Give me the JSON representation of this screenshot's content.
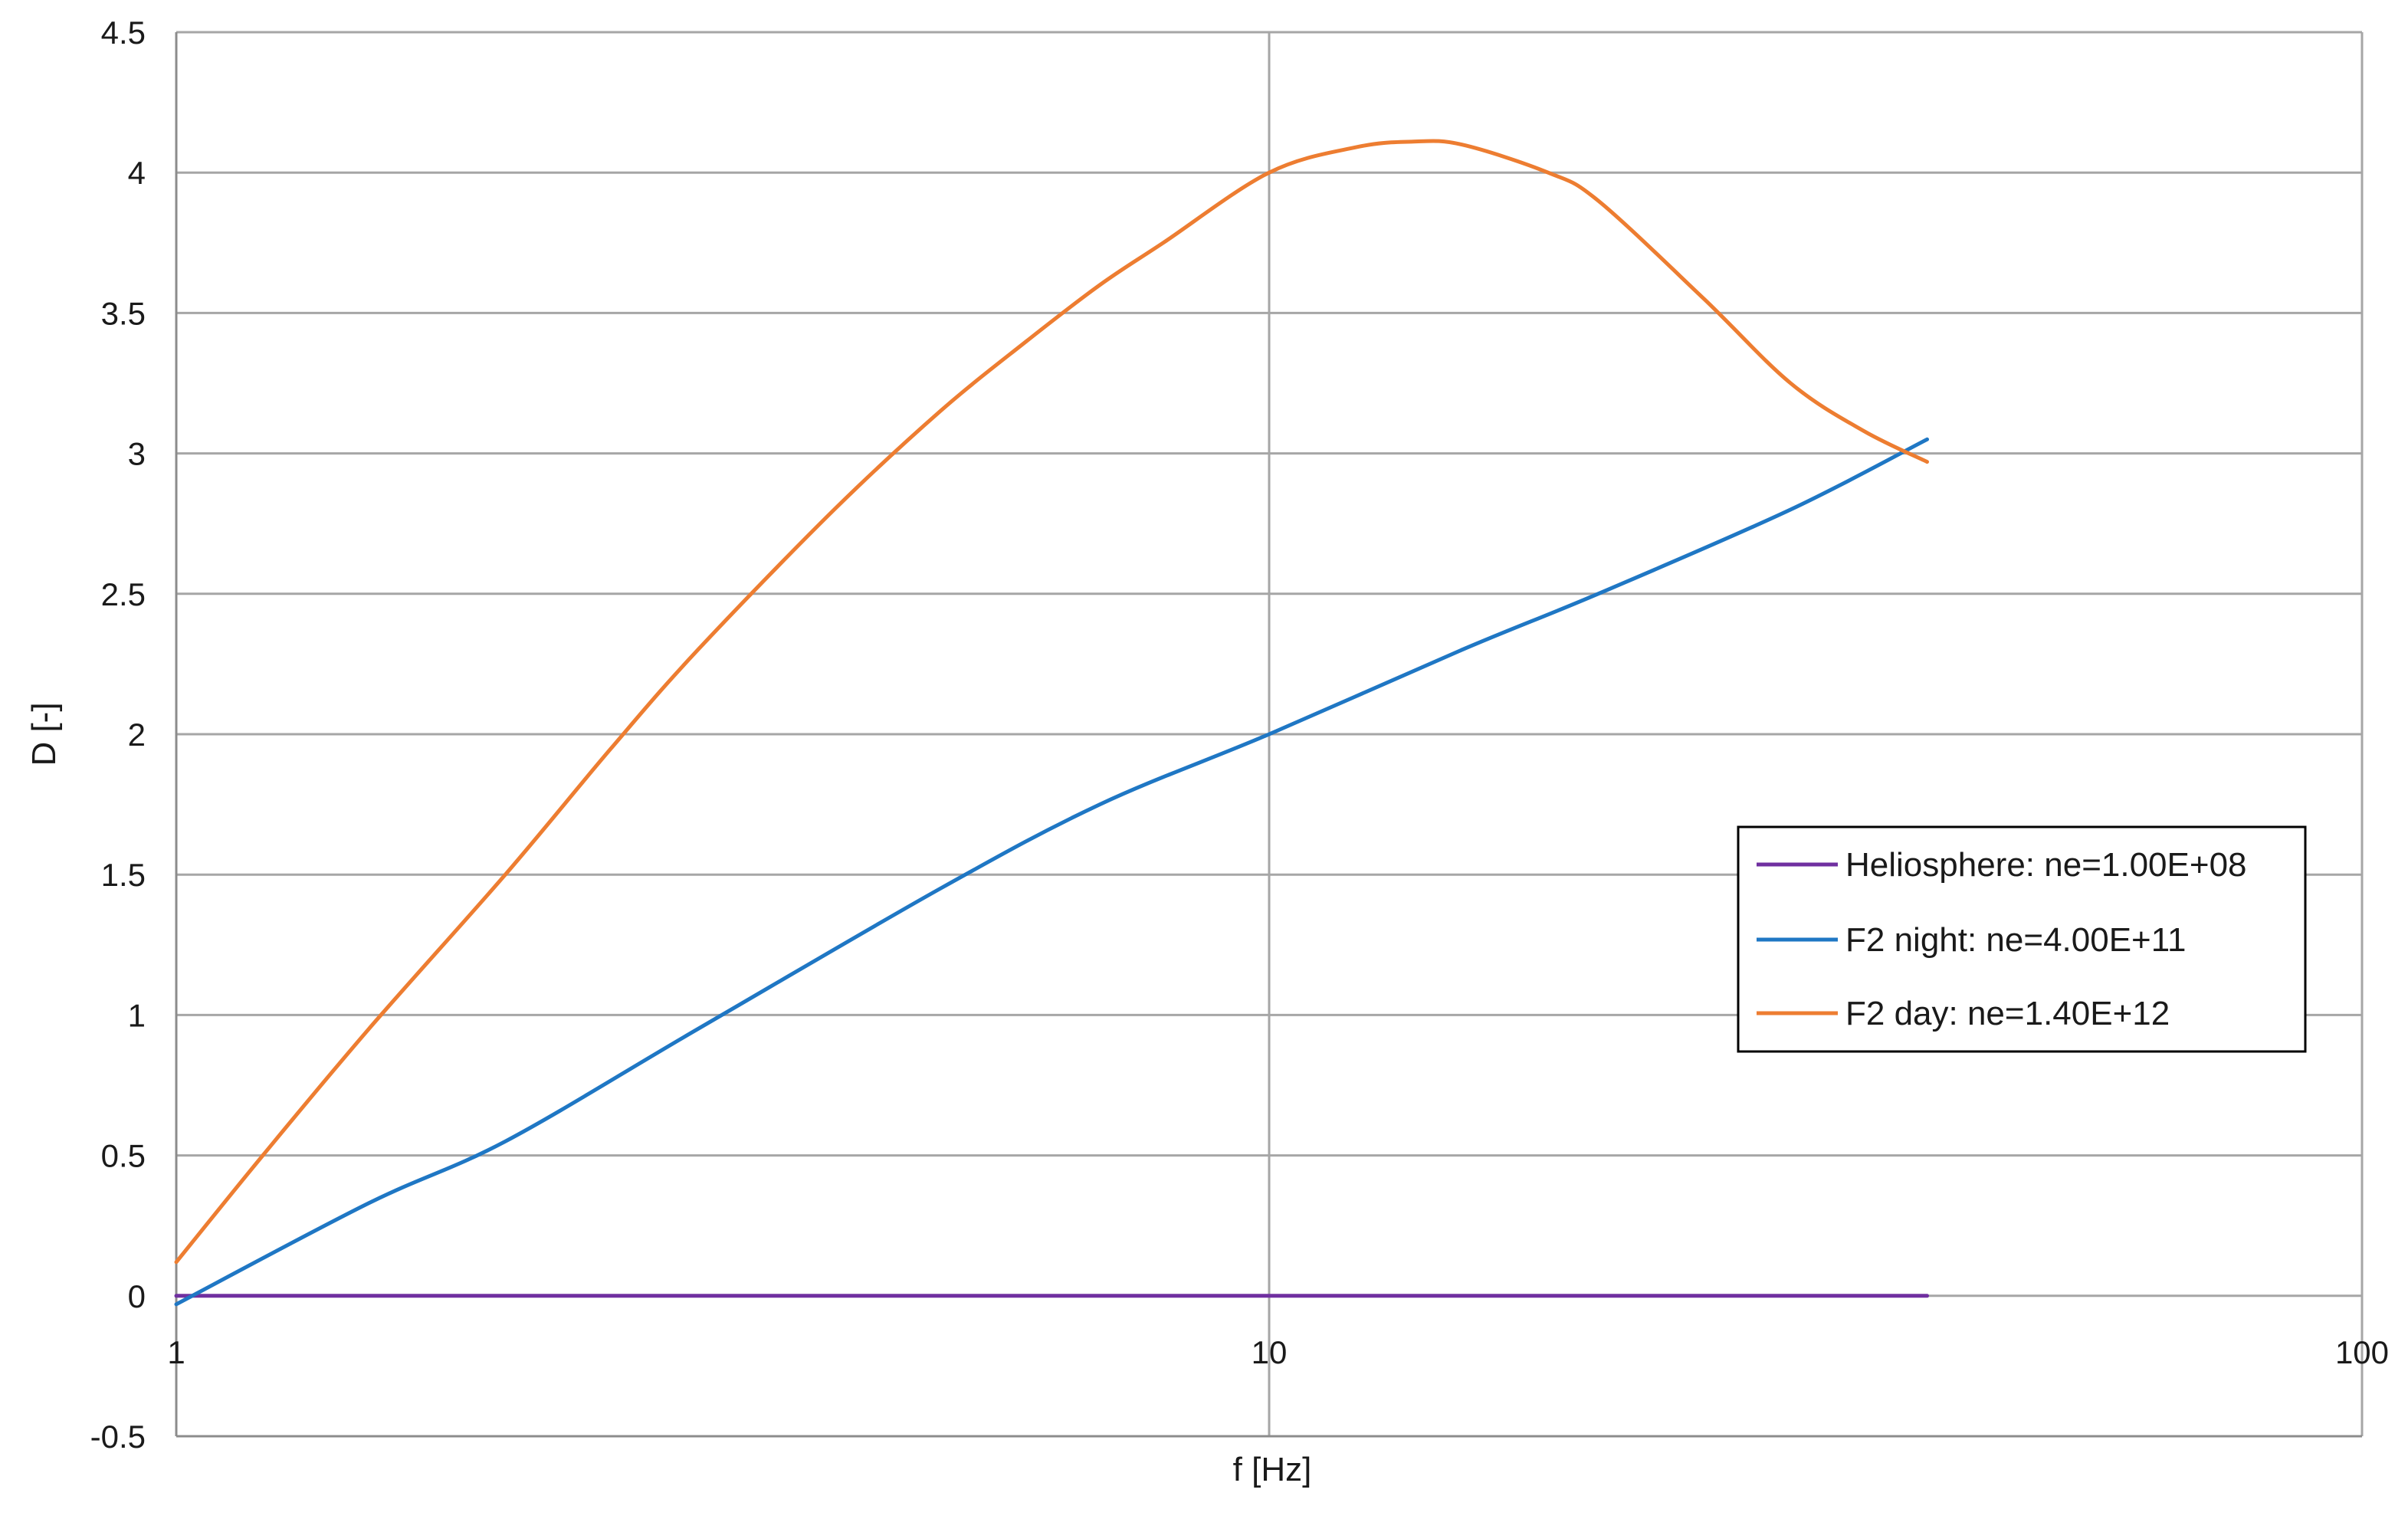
{
  "chart_data": {
    "type": "line",
    "title": "",
    "xlabel": "f [Hz]",
    "ylabel": "D [-]",
    "xscale": "log",
    "xlim": [
      1,
      100
    ],
    "ylim": [
      -0.5,
      4.5
    ],
    "xticks": [
      1,
      10,
      100
    ],
    "xtick_labels": [
      "1",
      "10",
      "100"
    ],
    "yticks": [
      -0.5,
      0,
      0.5,
      1,
      1.5,
      2,
      2.5,
      3,
      3.5,
      4,
      4.5
    ],
    "ytick_labels": [
      "-0.5",
      "0",
      "0.5",
      "1",
      "1.5",
      "2",
      "2.5",
      "3",
      "3.5",
      "4",
      "4.5"
    ],
    "grid": true,
    "legend_position": "right",
    "series": [
      {
        "name": "Heliosphere: ne=1.00E+08",
        "color": "#7030a0",
        "x": [
          1,
          2,
          5,
          10,
          20,
          40
        ],
        "y": [
          0,
          0,
          0,
          0,
          0,
          0
        ]
      },
      {
        "name": "F2 night: ne=4.00E+11",
        "color": "#1f77c4",
        "x": [
          1,
          1.5,
          2,
          3,
          5,
          7,
          10,
          15,
          20,
          30,
          40
        ],
        "y": [
          -0.03,
          0.33,
          0.55,
          0.95,
          1.45,
          1.75,
          2.0,
          2.3,
          2.5,
          2.8,
          3.05
        ]
      },
      {
        "name": "F2 day: ne=1.40E+12",
        "color": "#ed7d31",
        "x": [
          1,
          1.2,
          1.5,
          2,
          2.5,
          3,
          4,
          5,
          6,
          7,
          8,
          10,
          12,
          13.5,
          15,
          18,
          20,
          25,
          30,
          35,
          40
        ],
        "y": [
          0.12,
          0.5,
          0.95,
          1.5,
          1.95,
          2.3,
          2.8,
          3.15,
          3.4,
          3.6,
          3.75,
          4.0,
          4.09,
          4.11,
          4.1,
          4.0,
          3.9,
          3.55,
          3.25,
          3.08,
          2.97
        ]
      }
    ]
  }
}
